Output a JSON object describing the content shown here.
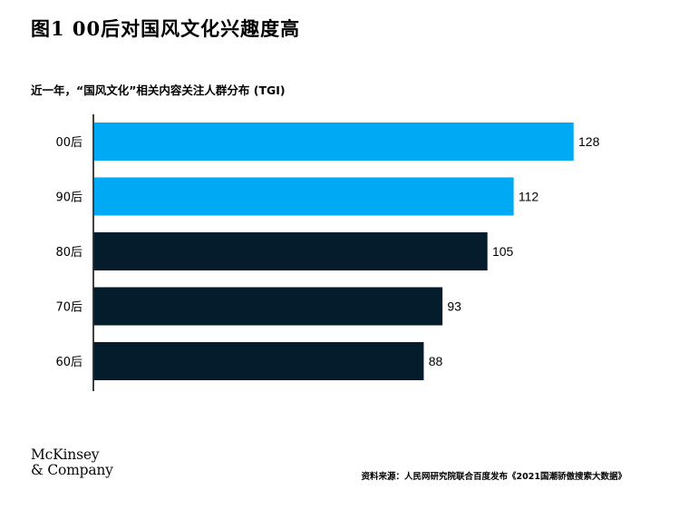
{
  "header": {
    "title": "图1 00后对国风文化兴趣度高",
    "subtitle": "近一年，“国风文化”相关内容关注人群分布 (TGI)"
  },
  "footer": {
    "logo_line1": "McKinsey",
    "logo_line2": "& Company",
    "source": "资料来源：人民网研究院联合百度发布《2021国潮骄傲搜索大数据》"
  },
  "colors": {
    "highlight": "#00A9F4",
    "base": "#051C2C",
    "axis": "#000000"
  },
  "chart_data": {
    "type": "bar",
    "orientation": "horizontal",
    "categories": [
      "00后",
      "90后",
      "80后",
      "70后",
      "60后"
    ],
    "values": [
      128,
      112,
      105,
      93,
      88
    ],
    "highlighted": [
      true,
      true,
      false,
      false,
      false
    ],
    "xlim": [
      0,
      128
    ],
    "grid": false
  }
}
